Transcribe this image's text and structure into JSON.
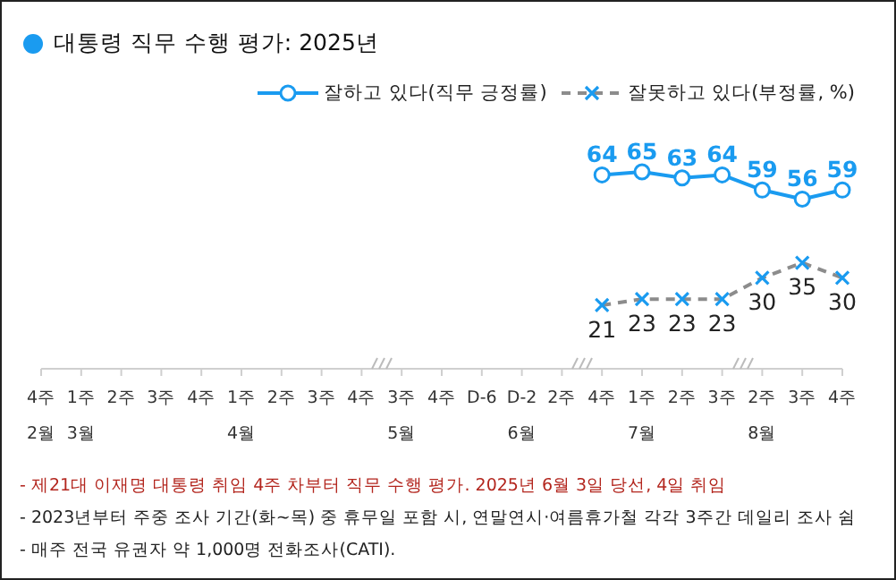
{
  "chart_data": {
    "type": "line",
    "title": "대통령 직무 수행 평가: 2025년",
    "categories": [
      "4주\n2월",
      "1주\n3월",
      "2주",
      "3주",
      "4주",
      "1주\n4월",
      "2주",
      "3주",
      "4주",
      "3주\n5월",
      "4주",
      "D-6",
      "D-2\n6월",
      "2주",
      "4주",
      "1주\n7월",
      "2주",
      "3주",
      "2주\n8월",
      "3주",
      "4주"
    ],
    "series": [
      {
        "name": "잘하고 있다(직무 긍정률)",
        "color": "#1a9bf0",
        "marker": "circle",
        "line_style": "solid",
        "values": [
          null,
          null,
          null,
          null,
          null,
          null,
          null,
          null,
          null,
          null,
          null,
          null,
          null,
          null,
          64,
          65,
          63,
          64,
          59,
          56,
          59
        ]
      },
      {
        "name": "잘못하고 있다(부정률, %)",
        "color": "#8c8c8c",
        "marker": "cross",
        "line_style": "dashed",
        "values": [
          null,
          null,
          null,
          null,
          null,
          null,
          null,
          null,
          null,
          null,
          null,
          null,
          null,
          null,
          21,
          23,
          23,
          23,
          30,
          35,
          30
        ]
      }
    ],
    "data_labels": true,
    "legend": "top right",
    "annotations": [
      "- 제21대 이재명 대통령 취임 4주 차부터 직무 수행 평가. 2025년 6월 3일 당선, 4일 취임",
      "- 2023년부터 주중 조사 기간(화~목) 중 휴무일 포함 시, 연말연시·여름휴가철 각각 3주간 데일리 조사 쉼",
      "- 매주 전국 유권자 약 1,000명 전화조사(CATI)."
    ]
  }
}
